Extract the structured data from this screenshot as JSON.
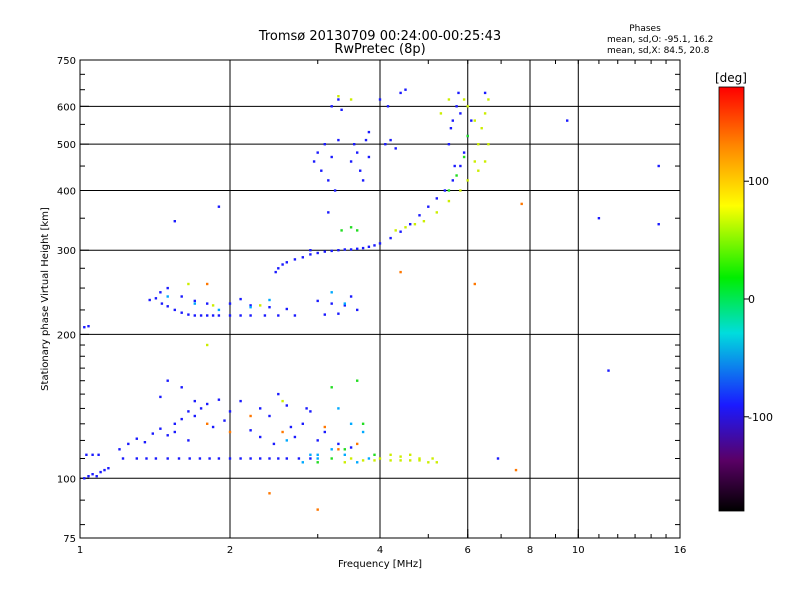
{
  "chart_data": {
    "type": "scatter",
    "title": "Tromsø 20130709 00:24:00-00:25:43",
    "subtitle": "RwPretec (8p)",
    "stats": {
      "heading": "Phases",
      "line1": "mean, sd,O:  -95.1, 16.2",
      "line2": "mean, sd,X:  84.5, 20.8"
    },
    "xlabel": "Frequency [MHz]",
    "ylabel": "Stationary phase Virtual Height [km]",
    "x_scale": "log",
    "y_scale": "log",
    "xlim": [
      1,
      16
    ],
    "ylim": [
      75,
      750
    ],
    "x_ticks": [
      {
        "v": 1,
        "label": "1"
      },
      {
        "v": 2,
        "label": "2"
      },
      {
        "v": 4,
        "label": "4"
      },
      {
        "v": 6,
        "label": "6"
      },
      {
        "v": 8,
        "label": "8"
      },
      {
        "v": 10,
        "label": "10"
      },
      {
        "v": 16,
        "label": "16"
      }
    ],
    "x_gridlines": [
      2,
      4,
      6,
      8,
      10
    ],
    "y_ticks": [
      {
        "v": 750,
        "label": "750"
      },
      {
        "v": 600,
        "label": "600"
      },
      {
        "v": 500,
        "label": "500"
      },
      {
        "v": 400,
        "label": "400"
      },
      {
        "v": 300,
        "label": "300"
      },
      {
        "v": 200,
        "label": "200"
      },
      {
        "v": 100,
        "label": "100"
      },
      {
        "v": 75,
        "label": "75"
      }
    ],
    "y_gridlines": [
      100,
      200,
      300,
      400,
      500,
      600
    ],
    "grid": true,
    "colorbar": {
      "label": "[deg]",
      "range": [
        -180,
        180
      ],
      "ticks": [
        {
          "v": 100,
          "label": "100"
        },
        {
          "v": 0,
          "label": "0"
        },
        {
          "v": -100,
          "label": "-100"
        }
      ]
    },
    "series": [
      {
        "color": "#1a1aff",
        "phase": -100,
        "points": [
          [
            1.02,
            100
          ],
          [
            1.04,
            101
          ],
          [
            1.06,
            102
          ],
          [
            1.08,
            101
          ],
          [
            1.1,
            103
          ],
          [
            1.12,
            104
          ],
          [
            1.14,
            105
          ],
          [
            1.03,
            112
          ],
          [
            1.06,
            112
          ],
          [
            1.09,
            112
          ],
          [
            1.22,
            110
          ],
          [
            1.3,
            110
          ],
          [
            1.36,
            110
          ],
          [
            1.42,
            110
          ],
          [
            1.5,
            110
          ],
          [
            1.58,
            110
          ],
          [
            1.66,
            110
          ],
          [
            1.74,
            110
          ],
          [
            1.82,
            110
          ],
          [
            1.9,
            110
          ],
          [
            2.0,
            110
          ],
          [
            2.1,
            110
          ],
          [
            2.2,
            110
          ],
          [
            2.3,
            110
          ],
          [
            2.4,
            110
          ],
          [
            2.5,
            110
          ],
          [
            2.6,
            110
          ],
          [
            2.75,
            110
          ],
          [
            2.9,
            110
          ],
          [
            1.2,
            115
          ],
          [
            1.25,
            118
          ],
          [
            1.3,
            121
          ],
          [
            1.35,
            119
          ],
          [
            1.4,
            124
          ],
          [
            1.45,
            127
          ],
          [
            1.5,
            123
          ],
          [
            1.55,
            130
          ],
          [
            1.6,
            133
          ],
          [
            1.65,
            138
          ],
          [
            1.7,
            135
          ],
          [
            1.75,
            140
          ],
          [
            1.8,
            143
          ],
          [
            1.85,
            128
          ],
          [
            1.9,
            146
          ],
          [
            1.95,
            132
          ],
          [
            2.0,
            138
          ],
          [
            2.1,
            145
          ],
          [
            2.2,
            126
          ],
          [
            2.3,
            140
          ],
          [
            2.4,
            135
          ],
          [
            2.5,
            150
          ],
          [
            2.6,
            142
          ],
          [
            2.7,
            122
          ],
          [
            2.8,
            130
          ],
          [
            2.9,
            138
          ],
          [
            3.0,
            120
          ],
          [
            3.1,
            125
          ],
          [
            3.3,
            118
          ],
          [
            3.5,
            116
          ],
          [
            1.45,
            148
          ],
          [
            1.5,
            160
          ],
          [
            1.6,
            155
          ],
          [
            1.7,
            145
          ],
          [
            1.55,
            125
          ],
          [
            1.65,
            120
          ],
          [
            2.3,
            122
          ],
          [
            2.45,
            118
          ],
          [
            2.65,
            128
          ],
          [
            2.85,
            140
          ],
          [
            1.02,
            207
          ],
          [
            1.04,
            208
          ],
          [
            1.38,
            236
          ],
          [
            1.42,
            238
          ],
          [
            1.46,
            232
          ],
          [
            1.5,
            229
          ],
          [
            1.55,
            225
          ],
          [
            1.6,
            222
          ],
          [
            1.65,
            220
          ],
          [
            1.7,
            219
          ],
          [
            1.75,
            219
          ],
          [
            1.8,
            219
          ],
          [
            1.85,
            219
          ],
          [
            1.9,
            219
          ],
          [
            2.0,
            219
          ],
          [
            2.1,
            219
          ],
          [
            2.2,
            219
          ],
          [
            2.35,
            219
          ],
          [
            2.5,
            219
          ],
          [
            2.7,
            219
          ],
          [
            1.45,
            245
          ],
          [
            1.5,
            250
          ],
          [
            1.6,
            240
          ],
          [
            1.7,
            235
          ],
          [
            1.8,
            232
          ],
          [
            2.0,
            232
          ],
          [
            2.1,
            237
          ],
          [
            2.2,
            230
          ],
          [
            2.4,
            228
          ],
          [
            2.6,
            226
          ],
          [
            3.0,
            235
          ],
          [
            3.2,
            232
          ],
          [
            3.4,
            230
          ],
          [
            3.5,
            240
          ],
          [
            3.6,
            225
          ],
          [
            3.1,
            220
          ],
          [
            3.3,
            221
          ],
          [
            1.55,
            345
          ],
          [
            1.9,
            370
          ],
          [
            2.47,
            270
          ],
          [
            2.5,
            275
          ],
          [
            2.55,
            280
          ],
          [
            2.6,
            283
          ],
          [
            2.7,
            287
          ],
          [
            2.8,
            290
          ],
          [
            2.9,
            294
          ],
          [
            3.0,
            296
          ],
          [
            3.1,
            298
          ],
          [
            3.2,
            299
          ],
          [
            3.3,
            300
          ],
          [
            3.4,
            301
          ],
          [
            3.5,
            301
          ],
          [
            3.6,
            302
          ],
          [
            3.7,
            303
          ],
          [
            3.8,
            305
          ],
          [
            3.9,
            307
          ],
          [
            4.0,
            310
          ],
          [
            4.2,
            318
          ],
          [
            4.4,
            328
          ],
          [
            4.6,
            340
          ],
          [
            4.8,
            355
          ],
          [
            5.0,
            370
          ],
          [
            5.2,
            385
          ],
          [
            5.4,
            400
          ],
          [
            5.6,
            420
          ],
          [
            5.8,
            450
          ],
          [
            5.9,
            480
          ],
          [
            6.0,
            520
          ],
          [
            6.1,
            560
          ],
          [
            2.9,
            300
          ],
          [
            2.95,
            460
          ],
          [
            3.0,
            480
          ],
          [
            3.05,
            440
          ],
          [
            3.1,
            500
          ],
          [
            3.15,
            420
          ],
          [
            3.2,
            470
          ],
          [
            3.25,
            400
          ],
          [
            3.3,
            510
          ],
          [
            3.15,
            360
          ],
          [
            3.2,
            600
          ],
          [
            3.3,
            620
          ],
          [
            3.35,
            590
          ],
          [
            3.5,
            460
          ],
          [
            3.55,
            500
          ],
          [
            3.6,
            480
          ],
          [
            3.65,
            440
          ],
          [
            3.7,
            420
          ],
          [
            3.75,
            510
          ],
          [
            3.8,
            470
          ],
          [
            3.8,
            530
          ],
          [
            4.1,
            500
          ],
          [
            4.2,
            510
          ],
          [
            4.3,
            490
          ],
          [
            4.4,
            640
          ],
          [
            4.5,
            650
          ],
          [
            4.15,
            600
          ],
          [
            4.0,
            620
          ],
          [
            5.6,
            560
          ],
          [
            5.7,
            600
          ],
          [
            5.75,
            640
          ],
          [
            5.5,
            500
          ],
          [
            5.55,
            540
          ],
          [
            5.8,
            580
          ],
          [
            5.65,
            450
          ],
          [
            6.5,
            640
          ],
          [
            6.9,
            110
          ],
          [
            9.5,
            560
          ],
          [
            11.0,
            350
          ],
          [
            11.5,
            168
          ],
          [
            14.5,
            340
          ],
          [
            14.5,
            450
          ]
        ]
      },
      {
        "color": "#00aaff",
        "phase": -50,
        "points": [
          [
            2.8,
            108
          ],
          [
            3.0,
            112
          ],
          [
            3.2,
            115
          ],
          [
            3.4,
            112
          ],
          [
            3.6,
            108
          ],
          [
            3.8,
            110
          ],
          [
            3.3,
            140
          ],
          [
            3.5,
            130
          ],
          [
            3.7,
            125
          ],
          [
            1.5,
            240
          ],
          [
            1.7,
            232
          ],
          [
            1.9,
            225
          ],
          [
            2.2,
            228
          ],
          [
            2.4,
            236
          ],
          [
            3.2,
            245
          ],
          [
            3.4,
            232
          ],
          [
            3.0,
            110
          ],
          [
            2.6,
            120
          ],
          [
            2.9,
            112
          ]
        ]
      },
      {
        "color": "#22dd22",
        "phase": 40,
        "points": [
          [
            3.0,
            108
          ],
          [
            3.2,
            110
          ],
          [
            3.4,
            115
          ],
          [
            3.6,
            160
          ],
          [
            3.7,
            130
          ],
          [
            3.9,
            112
          ],
          [
            3.35,
            330
          ],
          [
            3.5,
            335
          ],
          [
            3.6,
            330
          ],
          [
            5.5,
            400
          ],
          [
            5.7,
            430
          ],
          [
            5.9,
            470
          ],
          [
            6.0,
            520
          ],
          [
            3.2,
            155
          ]
        ]
      },
      {
        "color": "#ccee00",
        "phase": 95,
        "points": [
          [
            3.5,
            110
          ],
          [
            3.7,
            109
          ],
          [
            3.9,
            109
          ],
          [
            4.0,
            110
          ],
          [
            4.2,
            109
          ],
          [
            4.4,
            109
          ],
          [
            4.6,
            109
          ],
          [
            4.8,
            109
          ],
          [
            5.0,
            108
          ],
          [
            5.2,
            108
          ],
          [
            4.2,
            112
          ],
          [
            4.4,
            111
          ],
          [
            4.6,
            112
          ],
          [
            4.8,
            110
          ],
          [
            5.1,
            110
          ],
          [
            4.3,
            330
          ],
          [
            4.5,
            335
          ],
          [
            4.7,
            340
          ],
          [
            4.9,
            345
          ],
          [
            5.2,
            360
          ],
          [
            5.5,
            380
          ],
          [
            5.8,
            400
          ],
          [
            6.0,
            420
          ],
          [
            6.2,
            460
          ],
          [
            6.3,
            500
          ],
          [
            6.4,
            540
          ],
          [
            6.5,
            580
          ],
          [
            6.6,
            620
          ],
          [
            6.6,
            500
          ],
          [
            6.5,
            460
          ],
          [
            6.2,
            560
          ],
          [
            6.0,
            600
          ],
          [
            5.9,
            620
          ],
          [
            6.3,
            440
          ],
          [
            5.5,
            620
          ],
          [
            5.3,
            580
          ],
          [
            3.5,
            620
          ],
          [
            3.3,
            630
          ],
          [
            1.65,
            255
          ],
          [
            1.85,
            230
          ],
          [
            2.3,
            230
          ],
          [
            1.8,
            190
          ],
          [
            2.55,
            145
          ],
          [
            3.4,
            108
          ]
        ]
      },
      {
        "color": "#ff7700",
        "phase": 150,
        "points": [
          [
            1.8,
            130
          ],
          [
            2.0,
            125
          ],
          [
            2.2,
            135
          ],
          [
            3.1,
            128
          ],
          [
            3.3,
            115
          ],
          [
            2.4,
            93
          ],
          [
            3.0,
            86
          ],
          [
            6.2,
            255
          ],
          [
            7.7,
            375
          ],
          [
            7.5,
            104
          ],
          [
            4.4,
            270
          ],
          [
            2.55,
            125
          ],
          [
            3.6,
            118
          ],
          [
            1.8,
            255
          ]
        ]
      }
    ]
  }
}
